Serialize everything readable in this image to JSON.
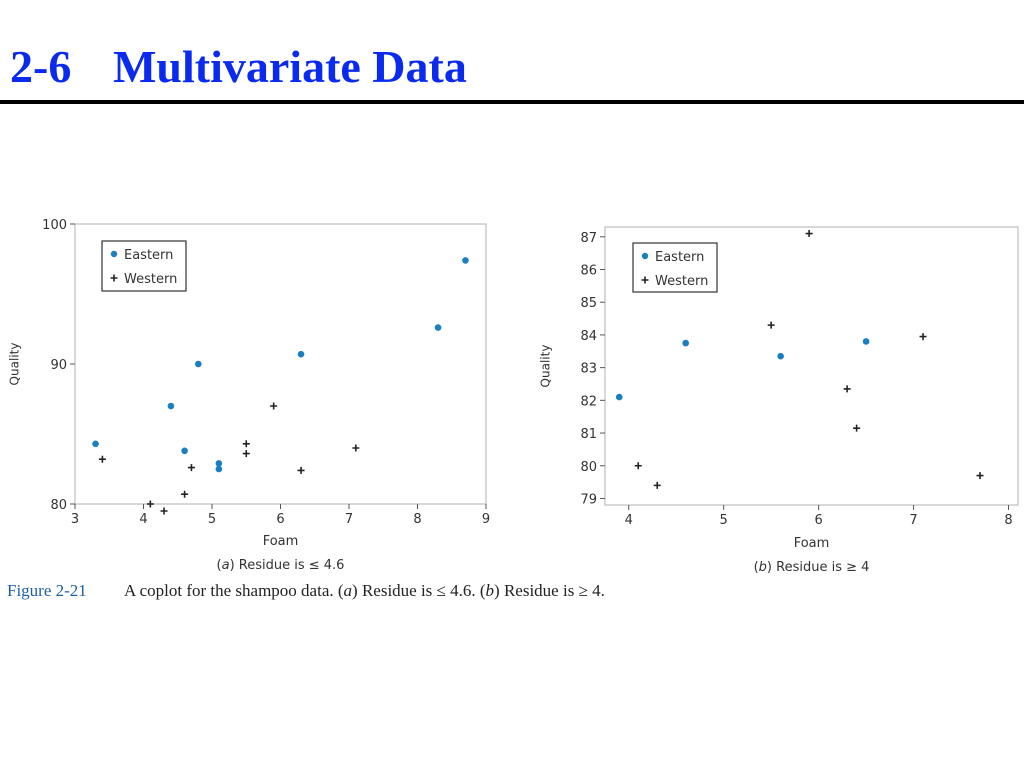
{
  "slide": {
    "number": "2-6",
    "title": "Multivariate Data"
  },
  "figure": {
    "label": "Figure 2-21",
    "caption_parts": [
      {
        "t": "A coplot for the shampoo data. (",
        "i": false
      },
      {
        "t": "a",
        "i": true
      },
      {
        "t": ") Residue is ≤ 4.6. (",
        "i": false
      },
      {
        "t": "b",
        "i": true
      },
      {
        "t": ") Residue is ≥ 4.",
        "i": false
      }
    ]
  },
  "colors": {
    "title": "#0a2bef",
    "eastern": "#1a7fc1",
    "western": "#222222",
    "figure_label": "#1f5fa3"
  },
  "chart_data": [
    {
      "type": "scatter",
      "xlabel": "Foam",
      "ylabel": "Quality",
      "subtitle_parts": [
        {
          "t": "(",
          "i": false
        },
        {
          "t": "a",
          "i": true
        },
        {
          "t": ") Residue is ≤ 4.6",
          "i": false
        }
      ],
      "xlim": [
        3,
        9
      ],
      "ylim": [
        80,
        100
      ],
      "xticks": [
        3,
        4,
        5,
        6,
        7,
        8,
        9
      ],
      "yticks": [
        80,
        90,
        100
      ],
      "legend_position": "top-left",
      "grid": false,
      "series": [
        {
          "name": "Eastern",
          "marker": "dot",
          "x": [
            3.3,
            4.4,
            4.6,
            4.8,
            5.1,
            5.1,
            6.3,
            8.3,
            8.7
          ],
          "y": [
            84.3,
            87.0,
            83.8,
            90.0,
            82.9,
            82.5,
            90.7,
            92.6,
            97.4
          ]
        },
        {
          "name": "Western",
          "marker": "plus",
          "x": [
            3.4,
            4.1,
            4.3,
            4.6,
            4.7,
            5.5,
            5.5,
            5.9,
            6.3,
            7.1
          ],
          "y": [
            83.2,
            80.0,
            79.5,
            80.7,
            82.6,
            84.3,
            83.6,
            87.0,
            82.4,
            84.0
          ]
        }
      ]
    },
    {
      "type": "scatter",
      "xlabel": "Foam",
      "ylabel": "Quality",
      "subtitle_parts": [
        {
          "t": "(",
          "i": false
        },
        {
          "t": "b",
          "i": true
        },
        {
          "t": ") Residue is ≥ 4",
          "i": false
        }
      ],
      "xlim": [
        3.75,
        8.1
      ],
      "ylim": [
        78.8,
        87.3
      ],
      "xticks": [
        4,
        5,
        6,
        7,
        8
      ],
      "yticks": [
        79,
        80,
        81,
        82,
        83,
        84,
        85,
        86,
        87
      ],
      "legend_position": "top-left",
      "grid": false,
      "series": [
        {
          "name": "Eastern",
          "marker": "dot",
          "x": [
            3.9,
            4.6,
            5.6,
            6.5
          ],
          "y": [
            82.1,
            83.75,
            83.35,
            83.8
          ]
        },
        {
          "name": "Western",
          "marker": "plus",
          "x": [
            4.1,
            4.3,
            5.5,
            5.9,
            6.3,
            6.4,
            7.1,
            7.7
          ],
          "y": [
            80.0,
            79.4,
            84.3,
            87.1,
            82.35,
            81.15,
            83.95,
            79.7
          ]
        }
      ]
    }
  ]
}
